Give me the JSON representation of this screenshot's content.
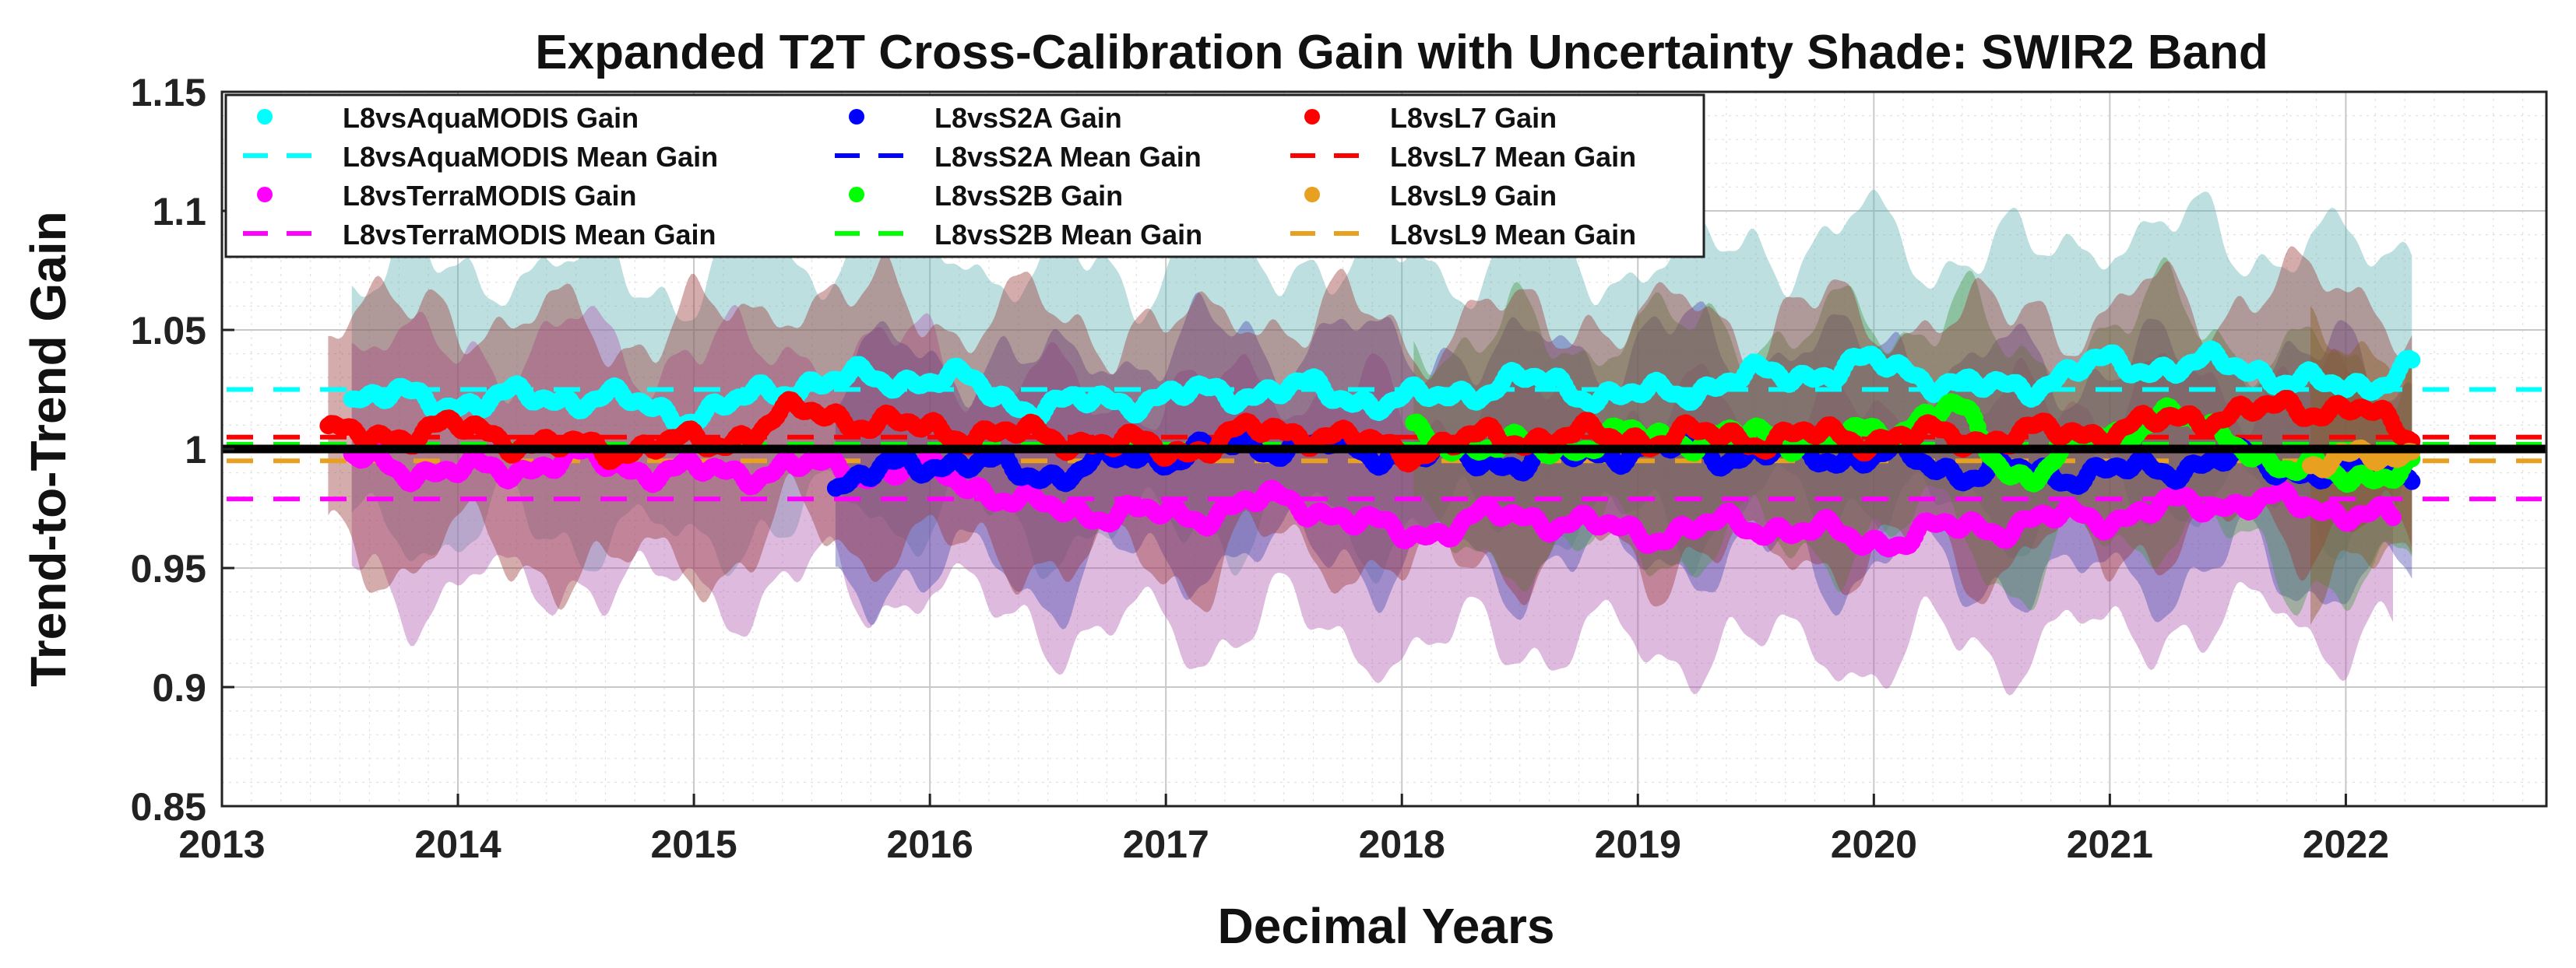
{
  "chart_data": {
    "type": "line",
    "title": "Expanded T2T Cross-Calibration Gain with Uncertainty Shade: SWIR2 Band",
    "xlabel": "Decimal Years",
    "ylabel": "Trend-to-Trend Gain",
    "xlim": [
      2013,
      2022.85
    ],
    "ylim": [
      0.85,
      1.15
    ],
    "xticks": [
      "2013",
      "2014",
      "2015",
      "2016",
      "2017",
      "2018",
      "2019",
      "2020",
      "2021",
      "2022"
    ],
    "yticks": [
      "0.85",
      "0.9",
      "0.95",
      "1",
      "1.05",
      "1.1",
      "1.15"
    ],
    "grid": true,
    "legend_position": "top-left",
    "reference_line": {
      "y": 1.0,
      "color": "#000000"
    },
    "series": [
      {
        "name": "L8vsAquaMODIS Gain",
        "mean_name": "L8vsAquaMODIS Mean Gain",
        "color": "#00ffff",
        "shade": "#62b2b2",
        "mean": 1.025,
        "uncertainty": 0.055,
        "points": [
          [
            2013.55,
            1.022
          ],
          [
            2014.0,
            1.02
          ],
          [
            2014.5,
            1.022
          ],
          [
            2015.0,
            1.015
          ],
          [
            2015.5,
            1.028
          ],
          [
            2016.0,
            1.03
          ],
          [
            2016.5,
            1.018
          ],
          [
            2017.0,
            1.022
          ],
          [
            2017.5,
            1.025
          ],
          [
            2018.0,
            1.02
          ],
          [
            2018.5,
            1.028
          ],
          [
            2019.0,
            1.022
          ],
          [
            2019.5,
            1.03
          ],
          [
            2020.0,
            1.035
          ],
          [
            2020.5,
            1.025
          ],
          [
            2021.0,
            1.035
          ],
          [
            2021.5,
            1.035
          ],
          [
            2022.0,
            1.025
          ],
          [
            2022.28,
            1.035
          ]
        ]
      },
      {
        "name": "L8vsTerraMODIS Gain",
        "mean_name": "L8vsTerraMODIS Mean Gain",
        "color": "#ff00ff",
        "shade": "#b05ab0",
        "mean": 0.979,
        "uncertainty": 0.05,
        "points": [
          [
            2013.55,
            0.995
          ],
          [
            2014.0,
            0.99
          ],
          [
            2014.5,
            0.995
          ],
          [
            2015.0,
            0.99
          ],
          [
            2015.5,
            0.992
          ],
          [
            2016.0,
            0.99
          ],
          [
            2016.5,
            0.975
          ],
          [
            2017.0,
            0.972
          ],
          [
            2017.5,
            0.978
          ],
          [
            2018.0,
            0.965
          ],
          [
            2018.5,
            0.972
          ],
          [
            2019.0,
            0.965
          ],
          [
            2019.5,
            0.968
          ],
          [
            2020.0,
            0.962
          ],
          [
            2020.5,
            0.968
          ],
          [
            2021.0,
            0.972
          ],
          [
            2021.5,
            0.978
          ],
          [
            2022.0,
            0.975
          ],
          [
            2022.2,
            0.97
          ]
        ]
      },
      {
        "name": "L8vsS2A Gain",
        "mean_name": "L8vsS2A Mean Gain",
        "color": "#0000ff",
        "shade": "#4a4ab0",
        "mean": 1.0,
        "uncertainty": 0.045,
        "points": [
          [
            2015.6,
            0.985
          ],
          [
            2016.0,
            0.995
          ],
          [
            2016.5,
            0.99
          ],
          [
            2017.0,
            0.998
          ],
          [
            2017.5,
            1.002
          ],
          [
            2018.0,
            0.998
          ],
          [
            2018.5,
            0.995
          ],
          [
            2019.0,
            1.0
          ],
          [
            2019.5,
            0.998
          ],
          [
            2020.0,
            0.997
          ],
          [
            2020.5,
            0.99
          ],
          [
            2021.0,
            0.99
          ],
          [
            2021.5,
            0.995
          ],
          [
            2022.0,
            0.99
          ],
          [
            2022.28,
            0.99
          ]
        ]
      },
      {
        "name": "L8vsS2B Gain",
        "mean_name": "L8vsS2B Mean Gain",
        "color": "#00ff00",
        "shade": "#4a9a4a",
        "mean": 1.002,
        "uncertainty": 0.045,
        "points": [
          [
            2018.05,
            1.005
          ],
          [
            2018.5,
            1.0
          ],
          [
            2019.0,
            1.005
          ],
          [
            2019.5,
            1.005
          ],
          [
            2020.0,
            1.005
          ],
          [
            2020.3,
            1.018
          ],
          [
            2020.6,
            0.99
          ],
          [
            2021.0,
            1.005
          ],
          [
            2021.2,
            1.015
          ],
          [
            2021.5,
            1.005
          ],
          [
            2021.8,
            0.99
          ],
          [
            2022.0,
            0.99
          ],
          [
            2022.28,
            0.99
          ]
        ]
      },
      {
        "name": "L8vsL7 Gain",
        "mean_name": "L8vsL7 Mean Gain",
        "color": "#ff0000",
        "shade": "#9a3a3a",
        "mean": 1.005,
        "uncertainty": 0.05,
        "points": [
          [
            2013.45,
            1.005
          ],
          [
            2014.0,
            1.008
          ],
          [
            2014.5,
            1.0
          ],
          [
            2015.0,
            1.002
          ],
          [
            2015.5,
            1.015
          ],
          [
            2016.0,
            1.008
          ],
          [
            2016.5,
            1.005
          ],
          [
            2017.0,
            1.0
          ],
          [
            2017.5,
            1.008
          ],
          [
            2018.0,
            1.0
          ],
          [
            2018.5,
            1.005
          ],
          [
            2019.0,
            1.005
          ],
          [
            2019.5,
            1.005
          ],
          [
            2020.0,
            1.005
          ],
          [
            2020.5,
            1.005
          ],
          [
            2021.0,
            1.008
          ],
          [
            2021.5,
            1.015
          ],
          [
            2022.0,
            1.018
          ],
          [
            2022.28,
            1.005
          ]
        ]
      },
      {
        "name": "L8vsL9 Gain",
        "mean_name": "L8vsL9 Mean Gain",
        "color": "#e8a020",
        "shade": "#8a5a20",
        "mean": 0.995,
        "uncertainty": 0.05,
        "points": [
          [
            2021.85,
            0.99
          ],
          [
            2022.0,
            0.995
          ],
          [
            2022.15,
            1.0
          ],
          [
            2022.28,
            0.998
          ]
        ]
      }
    ]
  }
}
